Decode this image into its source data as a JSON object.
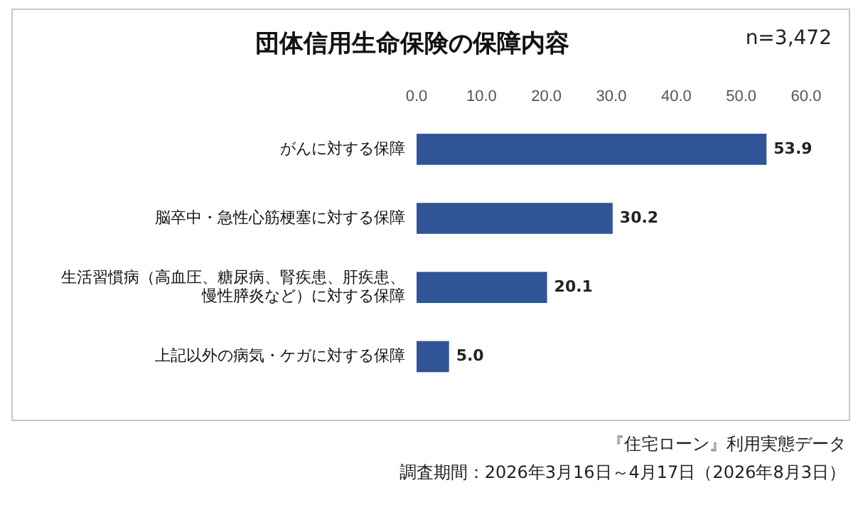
{
  "chart_data": {
    "type": "bar",
    "orientation": "horizontal",
    "title": "団体信用生命保険の保障内容",
    "categories": [
      "がんに対する保障",
      "脳卒中・急性心筋梗塞に対する保障",
      "生活習慣病（高血圧、糖尿病、腎疾患、肝疾患、慢性膵炎など）に対する保障",
      "上記以外の病気・ケガに対する保障"
    ],
    "values": [
      53.9,
      30.2,
      20.1,
      5.0
    ],
    "color": "#2f5597",
    "xlim": [
      0,
      60
    ],
    "xticks": [
      {
        "value": 0,
        "label": "0.0"
      },
      {
        "value": 10,
        "label": "10.0"
      },
      {
        "value": 20,
        "label": "20.0"
      },
      {
        "value": 30,
        "label": "30.0"
      },
      {
        "value": 40,
        "label": "40.0"
      },
      {
        "value": 50,
        "label": "50.0"
      },
      {
        "value": 60,
        "label": "60.0"
      }
    ],
    "grid": false,
    "legend": false,
    "value_labels": [
      "53.9",
      "30.2",
      "20.1",
      "5.0"
    ],
    "annotations": [
      "n=3,472",
      "『住宅ローン』利用実態データ",
      "調査期間：2026年3月16日～4月17日（2026年8月3日）"
    ]
  }
}
